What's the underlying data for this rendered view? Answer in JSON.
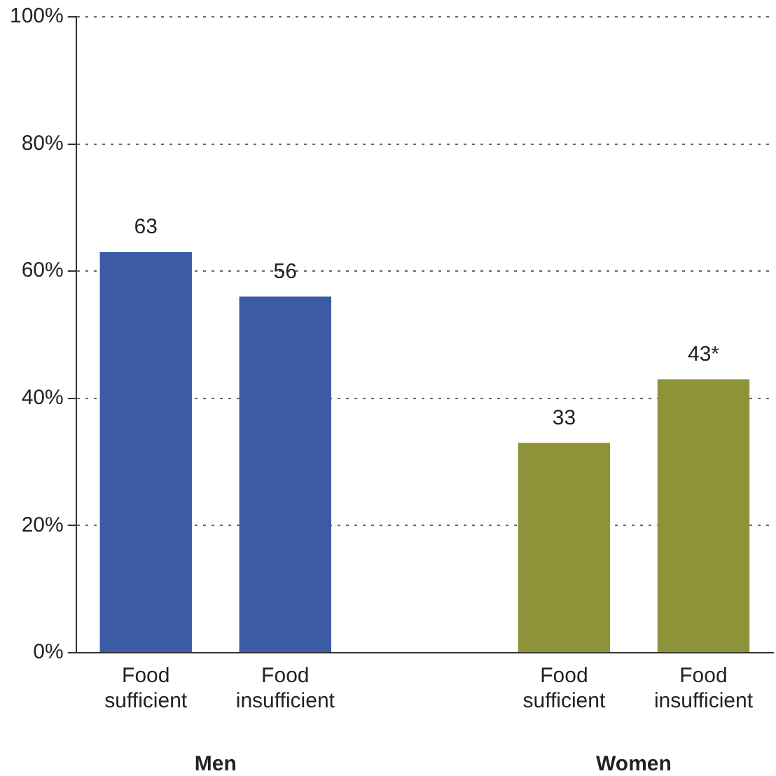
{
  "chart_data": {
    "type": "bar",
    "categories": [
      "Food sufficient",
      "Food insufficient",
      null,
      "Food sufficient",
      "Food insufficient"
    ],
    "values": [
      63,
      56,
      null,
      33,
      43
    ],
    "colors": [
      "#3b5ba5",
      "#3b5ba5",
      null,
      "#8e9339",
      "#8e9339"
    ],
    "value_labels": [
      "63",
      "56",
      null,
      "33",
      "43*"
    ],
    "ylim": [
      0,
      100
    ],
    "yticks": [
      {
        "value": 0,
        "label": "0%"
      },
      {
        "value": 20,
        "label": "20%"
      },
      {
        "value": 40,
        "label": "40%"
      },
      {
        "value": 60,
        "label": "60%"
      },
      {
        "value": 80,
        "label": "80%"
      },
      {
        "value": 100,
        "label": "100%"
      }
    ],
    "grid": "y",
    "annotations": [
      "Men",
      "Women"
    ]
  }
}
